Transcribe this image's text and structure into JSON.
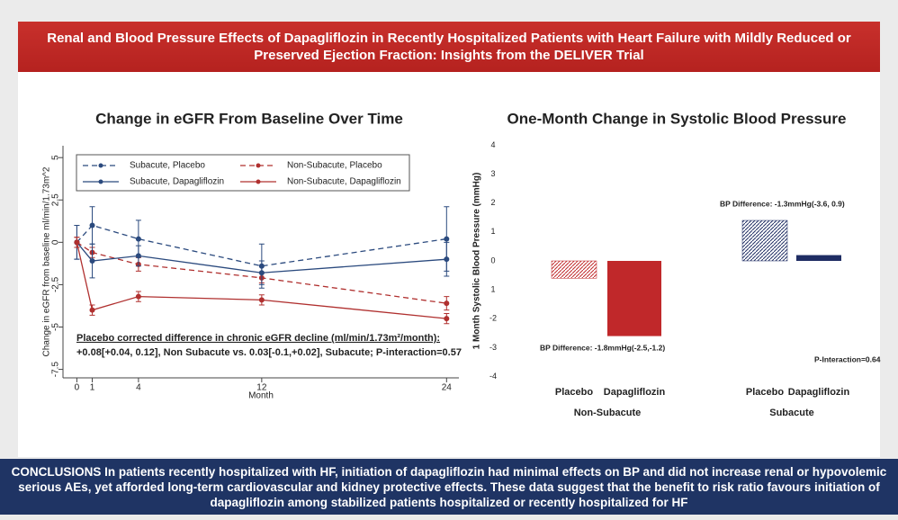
{
  "header": {
    "title": "Renal and Blood Pressure Effects of Dapagliflozin in Recently Hospitalized Patients with Heart Failure with Mildly Reduced or Preserved Ejection Fraction: Insights from the DELIVER Trial"
  },
  "conclusion": {
    "text": "CONCLUSIONS In patients recently hospitalized with HF, initiation of dapagliflozin had minimal effects on BP and did not increase renal or hypovolemic serious AEs, yet afforded long-term cardiovascular and kidney protective effects. These data suggest that the benefit to risk ratio favours initiation of dapagliflozin among stabilized patients hospitalized or recently hospitalized for HF"
  },
  "chart_data": [
    {
      "type": "line",
      "title": "Change in eGFR From Baseline Over Time",
      "y_label": "Change in eGFR from baseline ml/min/1.73m^2",
      "x_label": "Month",
      "x": [
        0,
        1,
        4,
        12,
        24
      ],
      "xlim": [
        -0.9,
        24.8
      ],
      "xticks": [
        0,
        1,
        4,
        12,
        24
      ],
      "ylim": [
        -8,
        5.7
      ],
      "yticks": [
        -7.5,
        -5,
        -2.5,
        0,
        2.5,
        5
      ],
      "series": [
        {
          "name": "Subacute, Placebo",
          "color": "#2b4a7e",
          "dashed": true,
          "values": [
            0,
            1.0,
            0.2,
            -1.4,
            0.2
          ],
          "errors": [
            1.0,
            1.1,
            1.1,
            1.3,
            1.9
          ]
        },
        {
          "name": "Non-Subacute, Placebo",
          "color": "#b0302f",
          "dashed": true,
          "values": [
            0,
            -0.6,
            -1.3,
            -2.1,
            -3.6
          ],
          "errors": [
            0.3,
            0.3,
            0.4,
            0.3,
            0.4
          ]
        },
        {
          "name": "Subacute, Dapagliflozin",
          "color": "#2b4a7e",
          "dashed": false,
          "values": [
            0,
            -1.1,
            -0.8,
            -1.8,
            -1.0
          ],
          "errors": [
            1.0,
            1.0,
            0.6,
            0.7,
            1.0
          ]
        },
        {
          "name": "Non-Subacute, Dapagliflozin",
          "color": "#b0302f",
          "dashed": false,
          "values": [
            0,
            -4.0,
            -3.2,
            -3.4,
            -4.5
          ],
          "errors": [
            0.3,
            0.3,
            0.3,
            0.3,
            0.3
          ]
        }
      ],
      "annotations": [
        "Placebo corrected difference in chronic eGFR decline (ml/min/1.73m²/month):",
        "+0.08[+0.04, 0.12], Non Subacute vs. 0.03[-0.1,+0.02], Subacute; P-interaction=0.57"
      ]
    },
    {
      "type": "bar",
      "title": "One-Month Change in Systolic Blood Pressure",
      "y_label": "1 Month Systolic Blood Pressure (mmHg)",
      "ylim": [
        -4.2,
        4.2
      ],
      "yticks": [
        4,
        3,
        2,
        {
          "value": 1,
          "label": "1"
        },
        0,
        {
          "value": -1,
          "label": "1"
        },
        -2,
        -3,
        -4
      ],
      "groups": [
        {
          "name": "Non-Subacute",
          "categories": [
            "Placebo",
            "Dapagliflozin"
          ],
          "values": [
            -0.6,
            -2.6
          ],
          "color": "#c0282a",
          "hatched": [
            true,
            false
          ],
          "annotation": "BP Difference: -1.8mmHg(-2.5,-1.2)"
        },
        {
          "name": "Subacute",
          "categories": [
            "Placebo",
            "Dapagliflozin"
          ],
          "values": [
            1.4,
            0.2
          ],
          "color": "#1f2d63",
          "hatched": [
            true,
            false
          ],
          "annotation": "BP Difference: -1.3mmHg(-3.6, 0.9)"
        }
      ],
      "p_interaction": "P-Interaction=0.64"
    }
  ]
}
